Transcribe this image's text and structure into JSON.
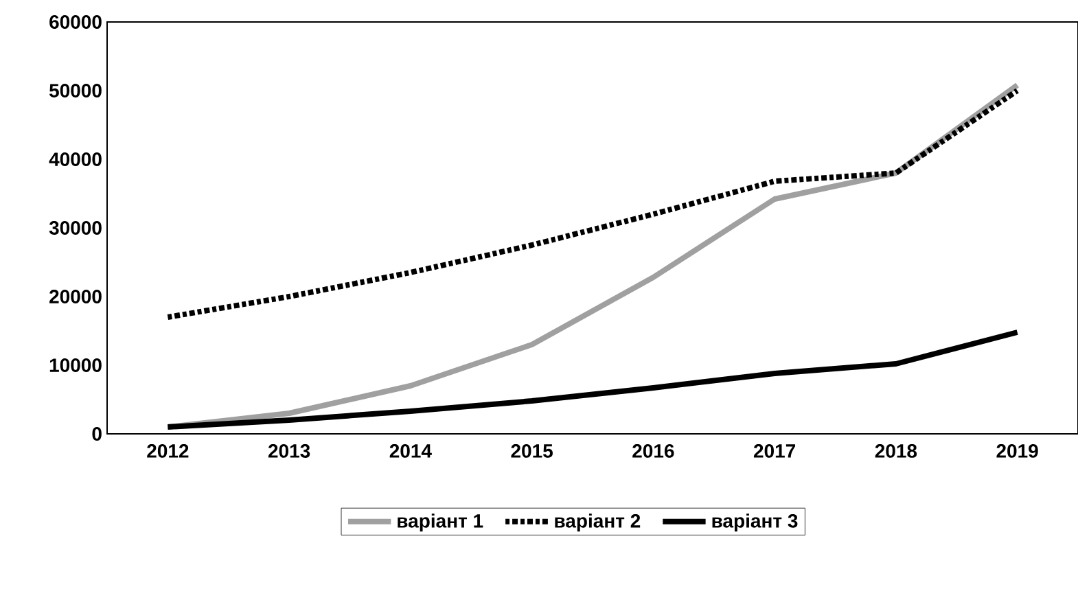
{
  "chart_data": {
    "type": "line",
    "categories": [
      "2012",
      "2013",
      "2014",
      "2015",
      "2016",
      "2017",
      "2018",
      "2019"
    ],
    "series": [
      {
        "name": "варіант 1",
        "color": "#a0a0a0",
        "line_style": "solid",
        "values": [
          1000,
          3000,
          7000,
          13000,
          22800,
          34200,
          38000,
          50800
        ]
      },
      {
        "name": "варіант 2",
        "color": "#000000",
        "line_style": "dashdot",
        "values": [
          17000,
          20000,
          23500,
          27500,
          32000,
          36800,
          38000,
          50000
        ]
      },
      {
        "name": "варіант 3",
        "color": "#000000",
        "line_style": "solid",
        "values": [
          1000,
          2000,
          3300,
          4800,
          6700,
          8800,
          10200,
          14800
        ]
      }
    ],
    "ylim": [
      0,
      60000
    ],
    "yticks": [
      0,
      10000,
      20000,
      30000,
      40000,
      50000,
      60000
    ],
    "grid": false,
    "legend": "bottom",
    "marker": "none"
  }
}
